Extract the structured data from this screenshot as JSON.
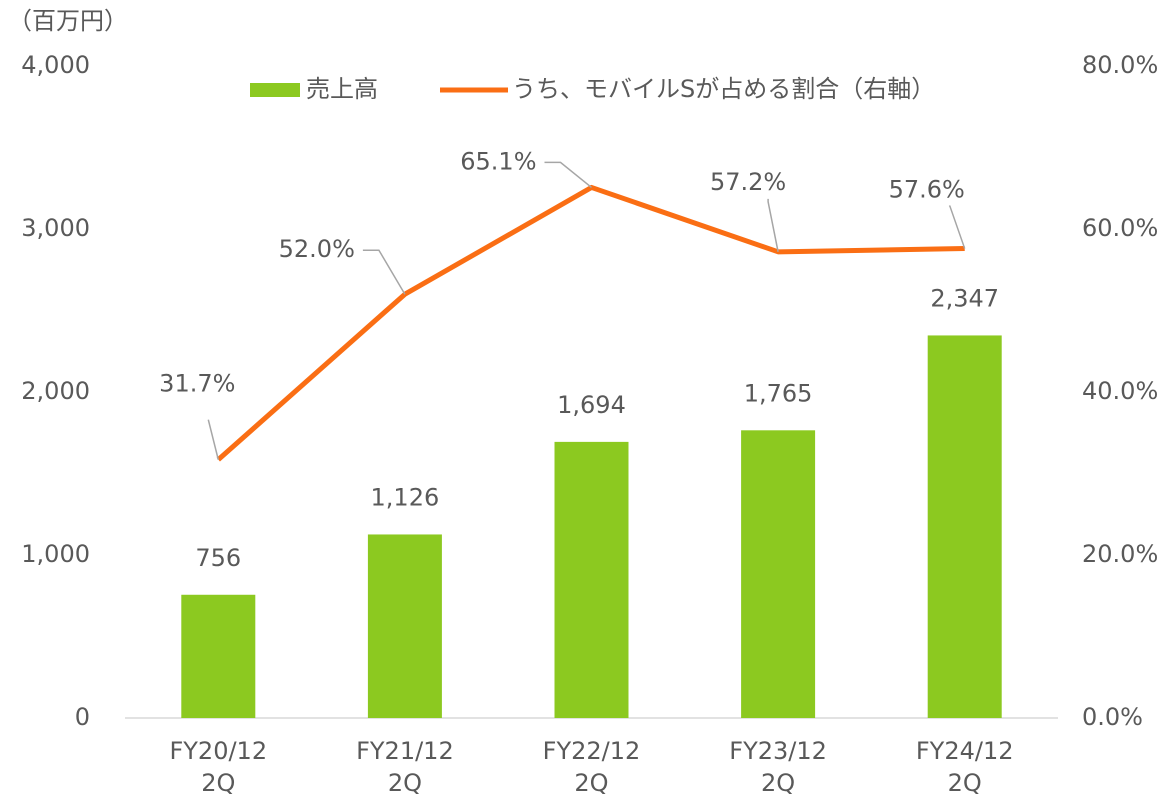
{
  "chart_data": {
    "type": "bar_line",
    "unit_label": "（百万円）",
    "categories": [
      "FY20/12\n2Q",
      "FY21/12\n2Q",
      "FY22/12\n2Q",
      "FY23/12\n2Q",
      "FY24/12\n2Q"
    ],
    "series": [
      {
        "name": "売上高",
        "type": "bar",
        "color": "#8cc920",
        "values": [
          756,
          1126,
          1694,
          1765,
          2347
        ],
        "value_labels": [
          "756",
          "1,126",
          "1,694",
          "1,765",
          "2,347"
        ]
      },
      {
        "name": "うち、モバイルSが占める割合（右軸）",
        "type": "line",
        "axis": "y2",
        "color": "#fa6e14",
        "values": [
          31.7,
          52.0,
          65.1,
          57.2,
          57.6
        ],
        "value_labels": [
          "31.7%",
          "52.0%",
          "65.1%",
          "57.2%",
          "57.6%"
        ]
      }
    ],
    "ylim": [
      0,
      4000
    ],
    "yticks": [
      0,
      {
        "value": 1000,
        "label": "1,000"
      },
      {
        "value": 2000,
        "label": "2,000"
      },
      {
        "value": 3000,
        "label": "3,000"
      },
      {
        "value": 4000,
        "label": "4,000"
      }
    ],
    "y2lim": [
      0,
      80
    ],
    "y2ticks": [
      {
        "value": 0,
        "label": "0.0%"
      },
      {
        "value": 20,
        "label": "20.0%"
      },
      {
        "value": 40,
        "label": "40.0%"
      },
      {
        "value": 60,
        "label": "60.0%"
      },
      {
        "value": 80,
        "label": "80.0%"
      }
    ],
    "legend": "top"
  }
}
